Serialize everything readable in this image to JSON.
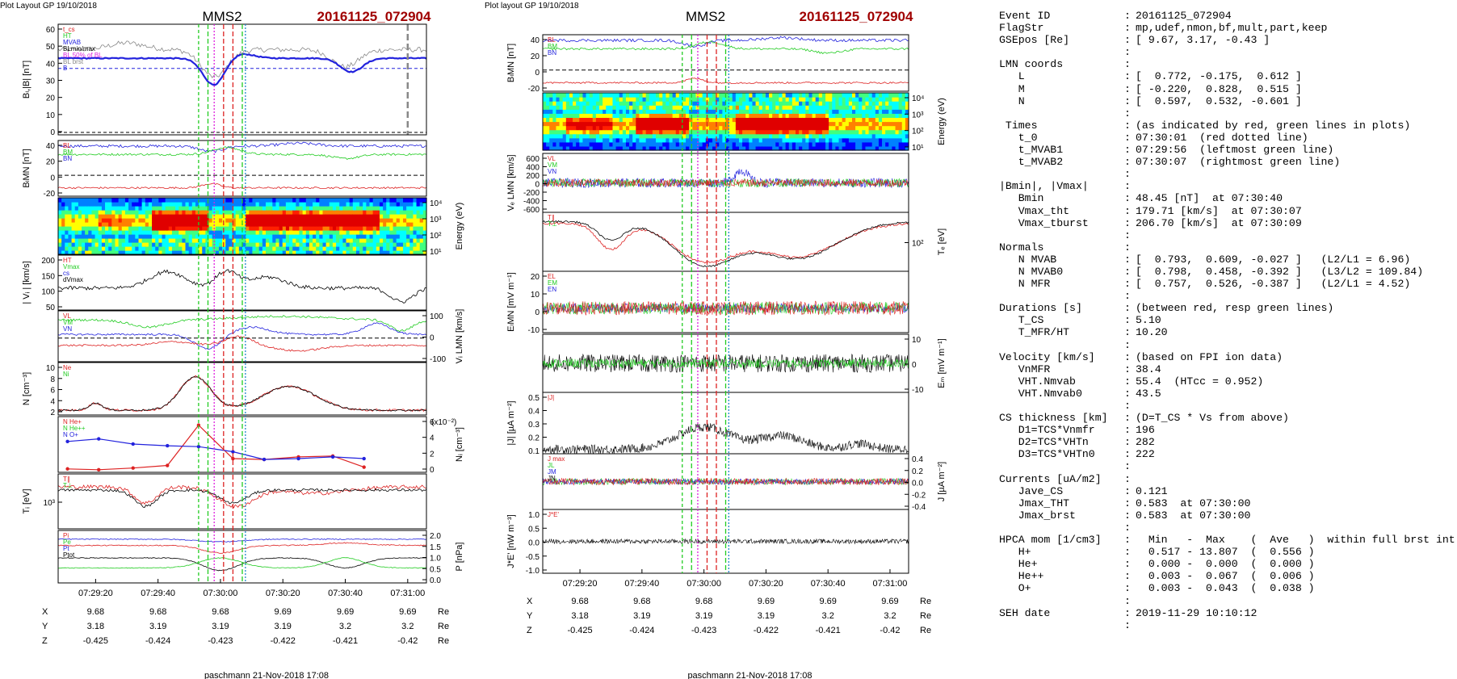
{
  "left": {
    "header": "Plot Layout GP 19/10/2018",
    "spacecraft": "MMS2",
    "event": "20161125_072904",
    "panels": [
      {
        "id": "b",
        "ylabel": "Bₗ,|B| [nT]",
        "yticks": [
          "0",
          "10",
          "20",
          "30",
          "40",
          "50",
          "60"
        ],
        "legend": [
          "t_cs",
          "HT",
          "MVAB",
          "BLmin/max",
          "BL 50% of BL",
          "BL brst",
          "B"
        ]
      },
      {
        "id": "blmn",
        "ylabel": "BₗMN [nT]",
        "yticks": [
          "-20",
          "0",
          "20",
          "40"
        ],
        "legend": [
          "BL",
          "BM",
          "BN"
        ]
      },
      {
        "id": "spec",
        "ylabel": "Energy (eV)",
        "yticks": [
          "10¹",
          "10²",
          "10³",
          "10⁴"
        ]
      },
      {
        "id": "vi",
        "ylabel": "| Vᵢ | [km/s]",
        "yticks": [
          "50",
          "100",
          "150",
          "200"
        ],
        "legend": [
          "HT",
          "Vmax",
          "cs",
          "dVmax"
        ]
      },
      {
        "id": "vilmn",
        "ylabel": "Vᵢ LMN [km/s]",
        "yticks": [
          "-100",
          "0",
          "100"
        ],
        "legend": [
          "VL",
          "VM",
          "VN"
        ]
      },
      {
        "id": "n",
        "ylabel": "N [cm⁻³]",
        "yticks": [
          "2",
          "4",
          "6",
          "8",
          "10"
        ],
        "legend": [
          "Ne",
          "Ni"
        ]
      },
      {
        "id": "hpca",
        "ylabel": "Nᵢ [cm⁻³]",
        "yticks": [
          "0",
          "2",
          "4",
          "6"
        ],
        "scale_note": "(x10⁻²)",
        "legend": [
          "N He+",
          "N He++",
          "N O+"
        ]
      },
      {
        "id": "ti",
        "ylabel": "Tᵢ [eV]",
        "yticks": [
          "10³"
        ],
        "legend": [
          "T∥",
          "T⊥"
        ]
      },
      {
        "id": "p",
        "ylabel": "P [nPa]",
        "yticks": [
          "0.0",
          "0.5",
          "1.0",
          "1.5",
          "2.0"
        ],
        "legend": [
          "Pi",
          "Pe",
          "Pt",
          "Ptot"
        ]
      }
    ],
    "time_ticks": [
      "07:29:20",
      "07:29:40",
      "07:30:00",
      "07:30:20",
      "07:30:40",
      "07:31:00"
    ],
    "footer": "paschmann 21-Nov-2018 17:08"
  },
  "middle": {
    "header": "Plot layout GP 19/10/2018",
    "spacecraft": "MMS2",
    "event": "20161125_072904",
    "panels": [
      {
        "id": "blmn",
        "ylabel": "BₗMN [nT]",
        "yticks": [
          "-20",
          "0",
          "20",
          "40"
        ],
        "legend": [
          "BL",
          "BM",
          "BN"
        ]
      },
      {
        "id": "spec",
        "ylabel": "Energy (eV)",
        "yticks": [
          "10¹",
          "10²",
          "10³",
          "10⁴"
        ]
      },
      {
        "id": "ve",
        "ylabel": "Vₑ LMN [km/s]",
        "yticks": [
          "-600",
          "-400",
          "-200",
          "0",
          "200",
          "400",
          "600"
        ],
        "legend": [
          "VL",
          "VM",
          "VN"
        ]
      },
      {
        "id": "te",
        "ylabel": "Tₑ [eV]",
        "yticks": [
          "10²"
        ],
        "legend": [
          "T∥",
          "T⊥"
        ]
      },
      {
        "id": "elmn",
        "ylabel": "EₗMN [mV m⁻¹]",
        "yticks": [
          "-10",
          "0",
          "10",
          "20"
        ],
        "legend": [
          "EL",
          "EM",
          "EN"
        ]
      },
      {
        "id": "em",
        "ylabel": "Eₘ [mV m⁻¹]",
        "yticks": [
          "-10",
          "0",
          "10"
        ]
      },
      {
        "id": "j",
        "ylabel": "|J| [µA m⁻²]",
        "yticks": [
          "0.1",
          "0.2",
          "0.3",
          "0.4",
          "0.5"
        ],
        "legend": [
          "|J|"
        ]
      },
      {
        "id": "jlmn",
        "ylabel": "J [µA m⁻²]",
        "yticks": [
          "-0.4",
          "-0.2",
          "0.0",
          "0.2",
          "0.4"
        ],
        "legend": [
          "J max",
          "JL",
          "JM",
          "JN"
        ]
      },
      {
        "id": "je",
        "ylabel": "J*E' [nW m⁻³]",
        "yticks": [
          "-1.0",
          "-0.5",
          "0.0",
          "0.5",
          "1.0"
        ],
        "legend": [
          "J*E'"
        ]
      }
    ],
    "time_ticks": [
      "07:29:20",
      "07:29:40",
      "07:30:00",
      "07:30:20",
      "07:30:40",
      "07:31:00"
    ],
    "footer": "paschmann 21-Nov-2018 17:08"
  },
  "position_table": {
    "rows": [
      {
        "label": "X",
        "values": [
          "9.68",
          "9.68",
          "9.68",
          "9.69",
          "9.69",
          "9.69"
        ],
        "unit": "Re"
      },
      {
        "label": "Y",
        "values": [
          "3.18",
          "3.19",
          "3.19",
          "3.19",
          "3.2",
          "3.2"
        ],
        "unit": "Re"
      },
      {
        "label": "Z",
        "values": [
          "-0.425",
          "-0.424",
          "-0.423",
          "-0.422",
          "-0.421",
          "-0.42"
        ],
        "unit": "Re"
      }
    ]
  },
  "info": [
    {
      "key": "Event ID",
      "value": "20161125_072904"
    },
    {
      "key": "FlagStr",
      "value": "mp,udef,nmon,bf,mult,part,keep"
    },
    {
      "key": "GSEpos [Re]",
      "value": "[ 9.67, 3.17, -0.43 ]"
    },
    {
      "key": "",
      "value": ""
    },
    {
      "key": "LMN coords",
      "value": ""
    },
    {
      "key": "   L",
      "value": "[  0.772, -0.175,  0.612 ]"
    },
    {
      "key": "   M",
      "value": "[ -0.220,  0.828,  0.515 ]"
    },
    {
      "key": "   N",
      "value": "[  0.597,  0.532, -0.601 ]"
    },
    {
      "key": "",
      "value": ""
    },
    {
      "key": " Times",
      "value": "(as indicated by red, green lines in plots)"
    },
    {
      "key": "   t_0",
      "value": "07:30:01  (red dotted line)"
    },
    {
      "key": "   t_MVAB1",
      "value": "07:29:56  (leftmost green line)"
    },
    {
      "key": "   t_MVAB2",
      "value": "07:30:07  (rightmost green line)"
    },
    {
      "key": "",
      "value": ""
    },
    {
      "key": "|Bmin|, |Vmax|",
      "value": ""
    },
    {
      "key": "   Bmin",
      "value": "48.45 [nT]  at 07:30:40"
    },
    {
      "key": "   Vmax_tht",
      "value": "179.71 [km/s]  at 07:30:07"
    },
    {
      "key": "   Vmax_tburst",
      "value": "206.70 [km/s]  at 07:30:09"
    },
    {
      "key": "",
      "value": ""
    },
    {
      "key": "Normals",
      "value": ""
    },
    {
      "key": "   N MVAB",
      "value": "[  0.793,  0.609, -0.027 ]   (L2/L1 = 6.96)"
    },
    {
      "key": "   N MVAB0",
      "value": "[  0.798,  0.458, -0.392 ]   (L3/L2 = 109.84)"
    },
    {
      "key": "   N MFR",
      "value": "[  0.757,  0.526, -0.387 ]   (L2/L1 = 4.52)"
    },
    {
      "key": "",
      "value": ""
    },
    {
      "key": "Durations [s]",
      "value": "(between red, resp green lines)"
    },
    {
      "key": "   T_CS",
      "value": "5.10"
    },
    {
      "key": "   T_MFR/HT",
      "value": "10.20"
    },
    {
      "key": "",
      "value": ""
    },
    {
      "key": "Velocity [km/s]",
      "value": "(based on FPI ion data)"
    },
    {
      "key": "   VnMFR",
      "value": "38.4"
    },
    {
      "key": "   VHT.Nmvab",
      "value": "55.4  (HTcc = 0.952)"
    },
    {
      "key": "   VHT.Nmvab0",
      "value": "43.5"
    },
    {
      "key": "",
      "value": ""
    },
    {
      "key": "CS thickness [km]",
      "value": "(D=T_CS * Vs from above)"
    },
    {
      "key": "   D1=TCS*Vnmfr",
      "value": "196"
    },
    {
      "key": "   D2=TCS*VHTn",
      "value": "282"
    },
    {
      "key": "   D3=TCS*VHTn0",
      "value": "222"
    },
    {
      "key": "",
      "value": ""
    },
    {
      "key": "Currents [uA/m2]",
      "value": ""
    },
    {
      "key": "   Jave_CS",
      "value": "0.121"
    },
    {
      "key": "   Jmax_THT",
      "value": "0.583  at 07:30:00"
    },
    {
      "key": "   Jmax_brst",
      "value": "0.583  at 07:30:00"
    },
    {
      "key": "",
      "value": ""
    },
    {
      "key": "HPCA mom [1/cm3]",
      "value": "  Min   -  Max    (  Ave   )  within full brst int"
    },
    {
      "key": "   H+",
      "value": "  0.517 - 13.807  (  0.556 )"
    },
    {
      "key": "   He+",
      "value": "  0.000 -  0.000  (  0.000 )"
    },
    {
      "key": "   He++",
      "value": "  0.003 -  0.067  (  0.006 )"
    },
    {
      "key": "   O+",
      "value": "  0.003 -  0.043  (  0.038 )"
    },
    {
      "key": "",
      "value": ""
    },
    {
      "key": "SEH date",
      "value": "2019-11-29 10:10:12"
    },
    {
      "key": "",
      "value": ""
    }
  ],
  "colors": {
    "red": "#dd2222",
    "green": "#22cc22",
    "blue": "#2222dd",
    "black": "#000000",
    "gray": "#888888",
    "magenta": "#dd22dd",
    "event_title": "#a00000"
  },
  "chart_data": [
    {
      "type": "line",
      "title": "MMS2 20161125_072904",
      "time_range": [
        "07:29:08",
        "07:31:06"
      ],
      "markers": {
        "t_0": "07:30:01",
        "t_MVAB1": "07:29:56",
        "t_MVAB2": "07:30:07"
      },
      "hpca_points": {
        "He++": {
          "times": [
            "07:29:11",
            "07:29:21",
            "07:29:32",
            "07:29:43",
            "07:29:53",
            "07:30:04",
            "07:30:14",
            "07:30:25",
            "07:30:36",
            "07:30:46"
          ],
          "values": [
            0.4,
            0.3,
            0.5,
            0.8,
            5.5,
            1.6,
            1.5,
            1.8,
            1.9,
            0.6
          ]
        },
        "O+": {
          "times": [
            "07:29:11",
            "07:29:21",
            "07:29:32",
            "07:29:43",
            "07:29:53",
            "07:30:04",
            "07:30:14",
            "07:30:25",
            "07:30:36",
            "07:30:46"
          ],
          "values": [
            3.6,
            3.9,
            3.3,
            3.1,
            3.0,
            2.4,
            1.5,
            1.6,
            1.8,
            1.6
          ]
        }
      }
    }
  ]
}
